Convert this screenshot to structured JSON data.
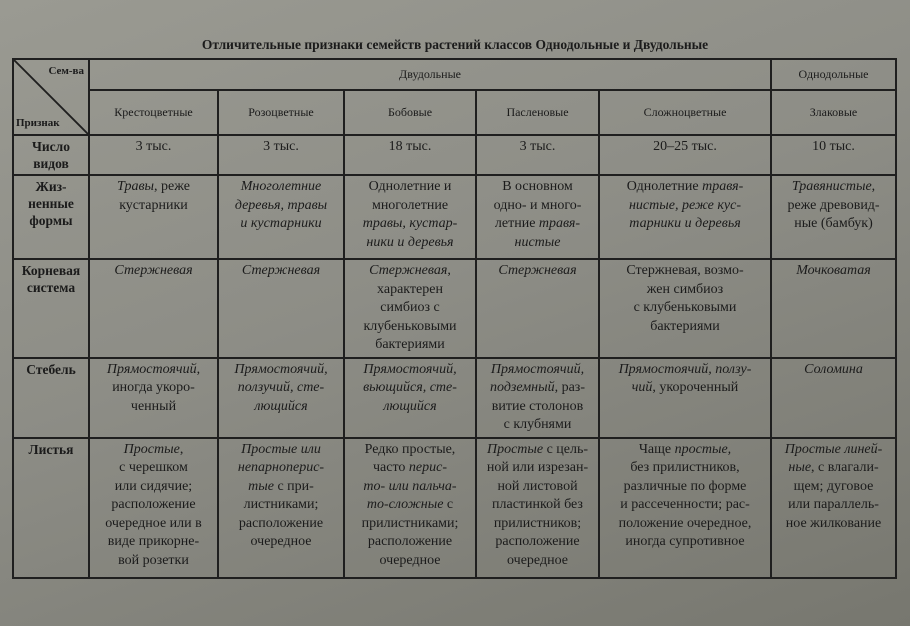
{
  "title": "Отличительные признаки семейств растений классов Однодольные и Двудольные",
  "header": {
    "corner_top": "Сем-ва",
    "corner_bottom": "Признак",
    "class_dicots": "Двудольные",
    "class_monocots": "Однодольные",
    "families": [
      "Крестоцветные",
      "Розоцветные",
      "Бобовые",
      "Пасленовые",
      "Сложноцветные",
      "Злаковые"
    ]
  },
  "rows": [
    {
      "label": "Число\nвидов",
      "cells": [
        [
          {
            "t": "3 тыс."
          }
        ],
        [
          {
            "t": "3 тыс."
          }
        ],
        [
          {
            "t": "18 тыс."
          }
        ],
        [
          {
            "t": "3 тыс."
          }
        ],
        [
          {
            "t": "20–25 тыс."
          }
        ],
        [
          {
            "t": "10 тыс."
          }
        ]
      ]
    },
    {
      "label": "Жиз-\nненные\nформы",
      "cells": [
        [
          {
            "t": "Травы",
            "i": true
          },
          {
            "t": ", реже\nкустарники"
          }
        ],
        [
          {
            "t": "Многолетние\nдеревья, травы\nи кустарники",
            "i": true
          }
        ],
        [
          {
            "t": "Однолетние и\nмноголетние\n"
          },
          {
            "t": "травы, кустар-\nники и деревья",
            "i": true
          }
        ],
        [
          {
            "t": "В основном\nодно- и много-\nлетние "
          },
          {
            "t": "травя-\nнистые",
            "i": true
          }
        ],
        [
          {
            "t": "Однолетние "
          },
          {
            "t": "травя-\nнистые, реже кус-\nтарники и деревья",
            "i": true
          }
        ],
        [
          {
            "t": "Травянистые",
            "i": true
          },
          {
            "t": ",\nреже древовид-\nные (бамбук)"
          }
        ]
      ]
    },
    {
      "label": "Корневая\nсистема",
      "cells": [
        [
          {
            "t": "Стержневая",
            "i": true
          }
        ],
        [
          {
            "t": "Стержневая",
            "i": true
          }
        ],
        [
          {
            "t": "Стержневая",
            "i": true
          },
          {
            "t": ",\nхарактерен\nсимбиоз с\nклубеньковыми\nбактериями"
          }
        ],
        [
          {
            "t": "Стержневая",
            "i": true
          }
        ],
        [
          {
            "t": "Стержневая, возмо-\nжен симбиоз\nс клубеньковыми\nбактериями"
          }
        ],
        [
          {
            "t": "Мочковатая",
            "i": true
          }
        ]
      ]
    },
    {
      "label": "Стебель",
      "cells": [
        [
          {
            "t": "Прямостоячий",
            "i": true
          },
          {
            "t": ",\nиногда укоро-\nченный"
          }
        ],
        [
          {
            "t": "Прямостоячий,\nползучий, сте-\nлющийся",
            "i": true
          }
        ],
        [
          {
            "t": "Прямостоячий,\nвьющийся, сте-\nлющийся",
            "i": true
          }
        ],
        [
          {
            "t": "Прямостоячий,\nподземный",
            "i": true
          },
          {
            "t": ", раз-\nвитие столонов\nс клубнями"
          }
        ],
        [
          {
            "t": "Прямостоячий, ползу-\nчий",
            "i": true
          },
          {
            "t": ", укороченный"
          }
        ],
        [
          {
            "t": "Соломина",
            "i": true
          }
        ]
      ]
    },
    {
      "label": "Листья",
      "cells": [
        [
          {
            "t": "Простые",
            "i": true
          },
          {
            "t": ",\nс черешком\nили сидячие;\nрасположение\nочередное или в\nвиде прикорне-\nвой розетки"
          }
        ],
        [
          {
            "t": "Простые или\nнепарноперис-\nтые",
            "i": true
          },
          {
            "t": " с при-\nлистниками;\nрасположение\nочередное"
          }
        ],
        [
          {
            "t": "Редко простые,\nчасто "
          },
          {
            "t": "перис-\nто- или пальча-\nто-сложные",
            "i": true
          },
          {
            "t": " с\nприлистниками;\nрасположение\nочередное"
          }
        ],
        [
          {
            "t": "Простые",
            "i": true
          },
          {
            "t": " с цель-\nной или изрезан-\nной листовой\nпластинкой без\nприлистников;\nрасположение\nочередное"
          }
        ],
        [
          {
            "t": "Чаще "
          },
          {
            "t": "простые,",
            "i": true
          },
          {
            "t": "\nбез прилистников,\nразличные по форме\nи рассеченности; рас-\nположение очередное,\nиногда супротивное"
          }
        ],
        [
          {
            "t": "Простые линей-\nные",
            "i": true
          },
          {
            "t": ", с влагали-\nщем; дуговое\nили параллель-\nное жилкование"
          }
        ]
      ]
    }
  ]
}
